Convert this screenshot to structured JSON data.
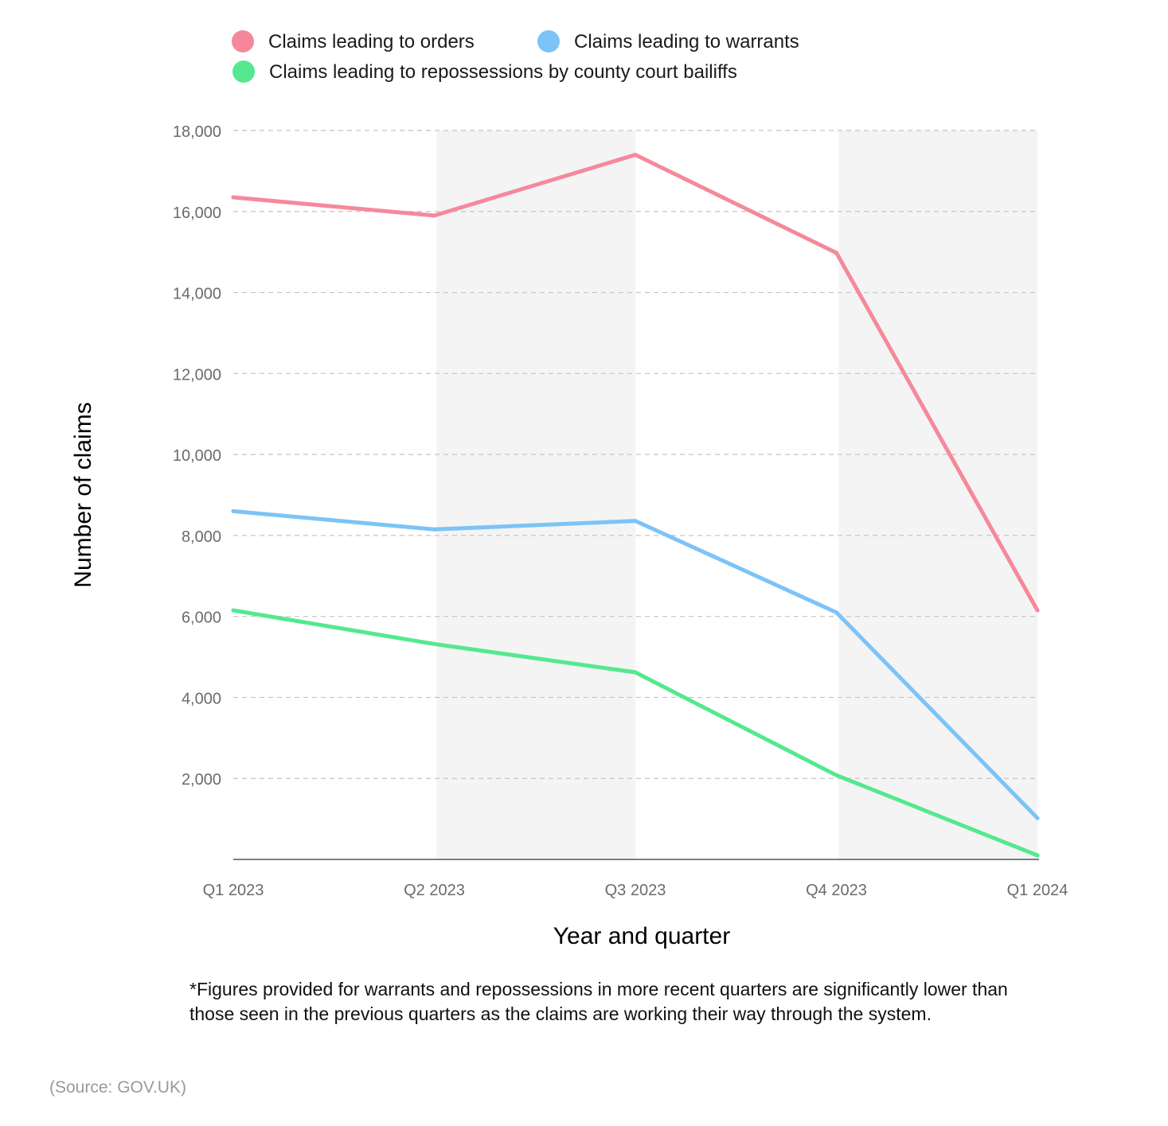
{
  "chart_data": {
    "type": "line",
    "categories": [
      "Q1 2023",
      "Q2 2023",
      "Q3 2023",
      "Q4 2023",
      "Q1 2024"
    ],
    "series": [
      {
        "name": "Claims leading to orders",
        "color": "#f5899b",
        "values": [
          16350,
          15900,
          17400,
          14980,
          6150
        ]
      },
      {
        "name": "Claims leading to warrants",
        "color": "#7cc3f7",
        "values": [
          8600,
          8150,
          8360,
          6100,
          1020
        ]
      },
      {
        "name": "Claims leading to repossessions by county court bailiffs",
        "color": "#55e88e",
        "values": [
          6150,
          5320,
          4620,
          2080,
          100
        ]
      }
    ],
    "xlabel": "Year and quarter",
    "ylabel": "Number of claims",
    "ylim": [
      0,
      18000
    ],
    "yticks": [
      2000,
      4000,
      6000,
      8000,
      10000,
      12000,
      14000,
      16000,
      18000
    ],
    "ytick_labels": [
      "2,000",
      "4,000",
      "6,000",
      "8,000",
      "10,000",
      "12,000",
      "14,000",
      "16,000",
      "18,000"
    ],
    "grid": "dashed horizontal",
    "shaded_bands": [
      "Q2 2023 to Q3 2023",
      "Q4 2023 to Q1 2024"
    ],
    "band_color": "#f4f4f4",
    "legend_position": "top"
  },
  "footnote": "*Figures provided for warrants and repossessions in more recent quarters are significantly lower than those seen in the previous quarters as the claims are working their way through the system.",
  "source": "(Source: GOV.UK)"
}
